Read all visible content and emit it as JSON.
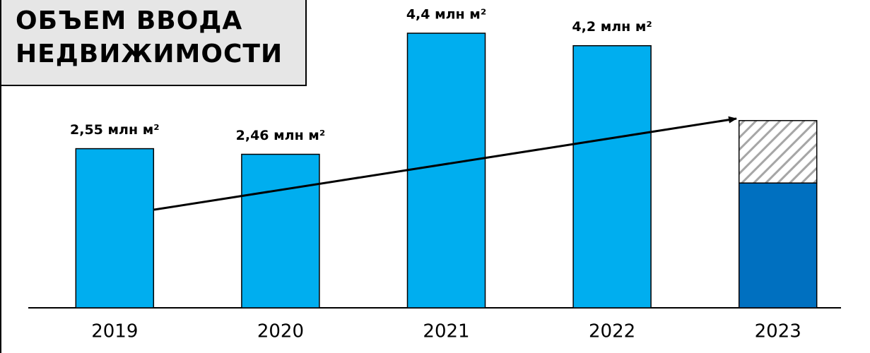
{
  "chart_data": {
    "type": "bar",
    "title": "ОБЪЕМ ВВОДА НЕДВИЖИМОСТИ",
    "categories": [
      "2019",
      "2020",
      "2021",
      "2022",
      "2023"
    ],
    "series": [
      {
        "colors": [
          "#00aeef",
          "#00aeef",
          "#00aeef",
          "#00aeef",
          "#0070c0"
        ],
        "values": [
          2.55,
          2.46,
          4.4,
          4.2,
          2.0
        ],
        "value_labels": [
          "2,55 млн м²",
          "2,46 млн м²",
          "4,4 млн м²",
          "4,2 млн м²",
          null
        ]
      },
      {
        "color": "#a6a6a6",
        "pattern": "hatch",
        "values": [
          null,
          null,
          null,
          null,
          1.0
        ]
      }
    ],
    "stacked": true,
    "ylim": [
      0,
      5
    ]
  }
}
